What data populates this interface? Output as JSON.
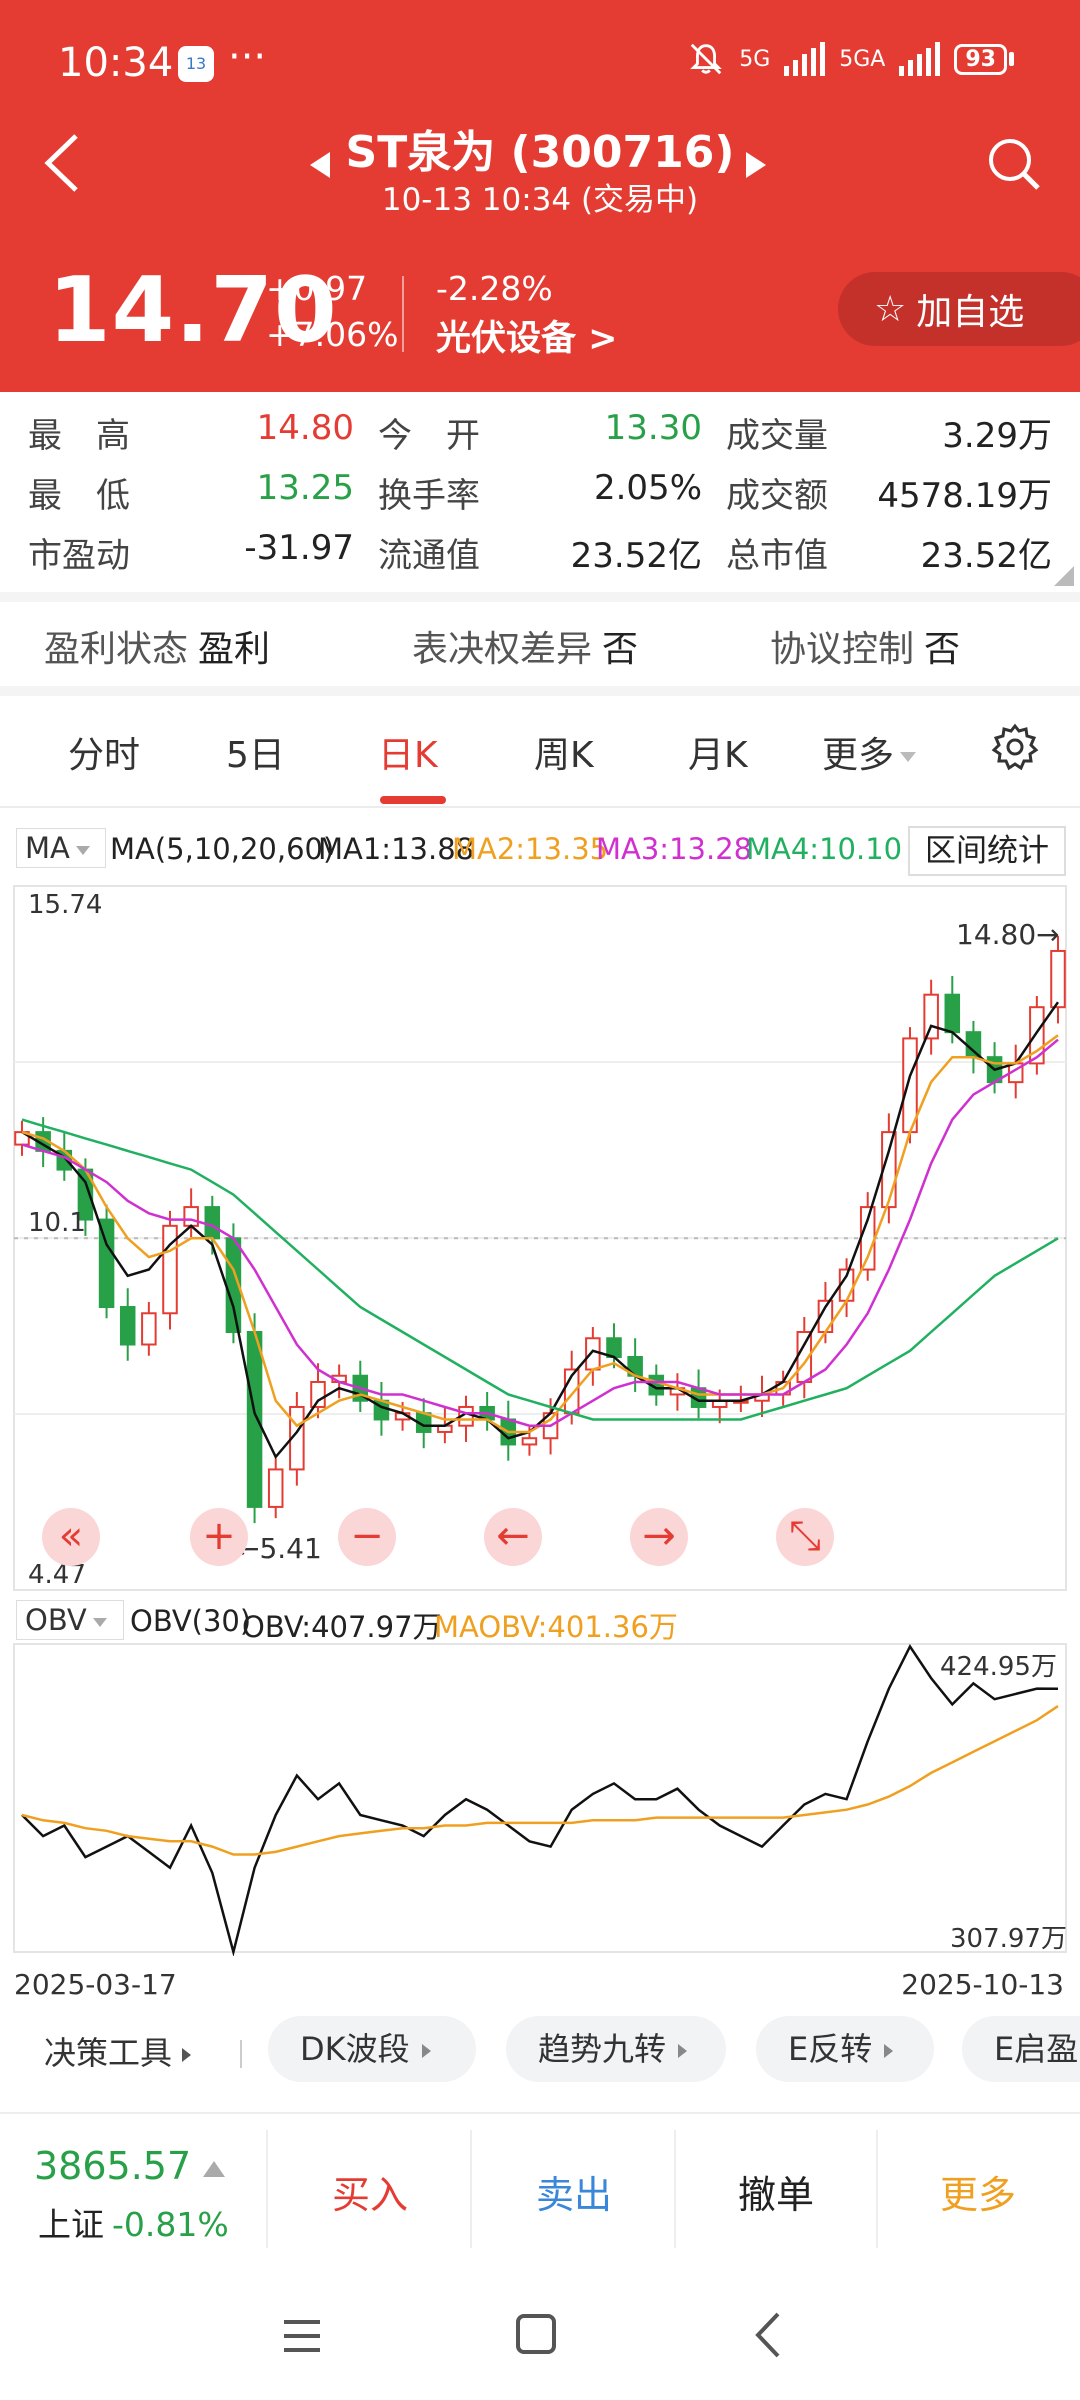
{
  "status_bar": {
    "time": "10:34",
    "notif": "13",
    "dots": "···",
    "net1": "5G",
    "net2": "5GA",
    "battery": "93"
  },
  "header": {
    "title": "ST泉为 (300716)",
    "subtitle": "10-13 10:34 (交易中)",
    "price": "14.70",
    "change": "+0.97",
    "change_pct": "+7.06%",
    "sector_pct": "-2.28%",
    "sector": "光伏设备  >",
    "watch_label": "加自选"
  },
  "quote": {
    "high_label": "最　高",
    "high": "14.80",
    "open_label": "今　开",
    "open": "13.30",
    "volume_label": "成交量",
    "volume": "3.29万",
    "low_label": "最　低",
    "low": "13.25",
    "turnover_label": "换手率",
    "turnover": "2.05%",
    "amount_label": "成交额",
    "amount": "4578.19万",
    "pe_label": "市盈动",
    "pe": "-31.97",
    "float_label": "流通值",
    "float_cap": "23.52亿",
    "total_label": "总市值",
    "total_cap": "23.52亿"
  },
  "flags": [
    {
      "label": "盈利状态",
      "value": "盈利"
    },
    {
      "label": "表决权差异",
      "value": "否"
    },
    {
      "label": "协议控制",
      "value": "否"
    }
  ],
  "tabs": [
    {
      "label": "分时"
    },
    {
      "label": "5日"
    },
    {
      "label": "日K"
    },
    {
      "label": "周K"
    },
    {
      "label": "月K"
    },
    {
      "label": "更多"
    }
  ],
  "ma_legend": {
    "selector": "MA",
    "params": "MA(5,10,20,60)",
    "ma1": "MA1:13.88",
    "ma2": "MA2:13.35",
    "ma3": "MA3:13.28",
    "ma4": "MA4:10.10",
    "range_btn": "区间统计",
    "colors": {
      "ma1": "#111111",
      "ma2": "#f0a020",
      "ma3": "#d030d0",
      "ma4": "#20b060"
    }
  },
  "kline": {
    "y_max": "15.74",
    "y_min": "4.47",
    "y_mid": "10.1",
    "max_marker": "14.80→",
    "min_marker": "←5.41",
    "controls": [
      "«",
      "+",
      "−",
      "←",
      "→",
      "⤡"
    ]
  },
  "obv": {
    "selector": "OBV",
    "params": "OBV(30)",
    "obv": "OBV:407.97万",
    "maobv": "MAOBV:401.36万",
    "y_max": "424.95万",
    "y_min": "307.97万"
  },
  "dates": {
    "start": "2025-03-17",
    "end": "2025-10-13"
  },
  "tools": {
    "first": "决策工具",
    "chips": [
      "DK波段",
      "趋势九转",
      "E反转",
      "E启盈"
    ]
  },
  "tradebar": {
    "index_value": "3865.57",
    "index_name": "上证",
    "index_pct": "-0.81%",
    "buy": "买入",
    "sell": "卖出",
    "cancel": "撤单",
    "more": "更多"
  },
  "chart_data": [
    {
      "type": "candlestick",
      "x_range": [
        "2025-03-17",
        "2025-10-13"
      ],
      "ylim": [
        4.47,
        15.74
      ],
      "annotations": [
        {
          "label": "14.80",
          "kind": "max",
          "value": 14.8
        },
        {
          "label": "5.41",
          "kind": "min",
          "value": 5.41
        }
      ],
      "ref_line": 10.1,
      "close_approx": [
        11.8,
        11.5,
        11.2,
        10.4,
        9.0,
        8.4,
        8.9,
        10.3,
        10.6,
        10.1,
        8.6,
        5.8,
        6.4,
        7.4,
        7.8,
        7.9,
        7.5,
        7.2,
        7.3,
        7.0,
        7.1,
        7.4,
        7.2,
        6.8,
        6.9,
        7.3,
        8.0,
        8.5,
        8.2,
        7.9,
        7.6,
        7.7,
        7.4,
        7.5,
        7.5,
        7.6,
        7.8,
        8.6,
        9.1,
        9.6,
        10.6,
        11.8,
        13.3,
        14.0,
        13.4,
        13.0,
        12.6,
        12.9,
        13.8,
        14.7
      ],
      "series": [
        {
          "name": "MA1",
          "values": [
            11.8,
            11.6,
            11.4,
            11.0,
            10.0,
            9.5,
            9.6,
            10.0,
            10.3,
            10.0,
            9.0,
            7.3,
            6.6,
            7.0,
            7.5,
            7.7,
            7.6,
            7.4,
            7.3,
            7.1,
            7.1,
            7.3,
            7.2,
            6.9,
            7.0,
            7.3,
            7.9,
            8.3,
            8.2,
            7.9,
            7.7,
            7.7,
            7.5,
            7.5,
            7.5,
            7.6,
            7.8,
            8.4,
            9.0,
            9.5,
            10.4,
            11.5,
            12.7,
            13.5,
            13.4,
            13.1,
            12.8,
            12.9,
            13.4,
            13.88
          ]
        },
        {
          "name": "MA2",
          "values": [
            11.8,
            11.7,
            11.5,
            11.2,
            10.6,
            10.1,
            9.8,
            9.9,
            10.1,
            10.1,
            9.6,
            8.6,
            7.5,
            7.1,
            7.3,
            7.5,
            7.6,
            7.5,
            7.4,
            7.3,
            7.2,
            7.2,
            7.2,
            7.0,
            7.0,
            7.2,
            7.6,
            8.0,
            8.1,
            7.9,
            7.8,
            7.7,
            7.6,
            7.6,
            7.6,
            7.6,
            7.7,
            8.1,
            8.6,
            9.1,
            9.8,
            10.7,
            11.8,
            12.6,
            13.0,
            13.0,
            12.9,
            12.9,
            13.1,
            13.35
          ]
        },
        {
          "name": "MA3",
          "values": [
            11.6,
            11.5,
            11.4,
            11.2,
            11.0,
            10.7,
            10.5,
            10.4,
            10.4,
            10.3,
            10.1,
            9.6,
            9.0,
            8.4,
            8.0,
            7.8,
            7.7,
            7.6,
            7.6,
            7.5,
            7.4,
            7.3,
            7.3,
            7.2,
            7.1,
            7.1,
            7.3,
            7.5,
            7.7,
            7.8,
            7.8,
            7.8,
            7.7,
            7.6,
            7.6,
            7.6,
            7.6,
            7.8,
            8.0,
            8.4,
            8.9,
            9.6,
            10.4,
            11.3,
            12.0,
            12.4,
            12.6,
            12.8,
            13.0,
            13.28
          ]
        },
        {
          "name": "MA4",
          "values": [
            12.0,
            11.9,
            11.8,
            11.7,
            11.6,
            11.5,
            11.4,
            11.3,
            11.2,
            11.0,
            10.8,
            10.5,
            10.2,
            9.9,
            9.6,
            9.3,
            9.0,
            8.8,
            8.6,
            8.4,
            8.2,
            8.0,
            7.8,
            7.6,
            7.5,
            7.4,
            7.3,
            7.2,
            7.2,
            7.2,
            7.2,
            7.2,
            7.2,
            7.2,
            7.2,
            7.3,
            7.4,
            7.5,
            7.6,
            7.7,
            7.9,
            8.1,
            8.3,
            8.6,
            8.9,
            9.2,
            9.5,
            9.7,
            9.9,
            10.1
          ]
        }
      ]
    },
    {
      "type": "line",
      "ylim": [
        307.97,
        424.95
      ],
      "series": [
        {
          "name": "OBV",
          "values": [
            360,
            352,
            356,
            344,
            348,
            352,
            346,
            340,
            356,
            338,
            305,
            340,
            360,
            375,
            366,
            372,
            360,
            358,
            356,
            352,
            360,
            366,
            362,
            356,
            350,
            348,
            362,
            368,
            372,
            366,
            366,
            370,
            362,
            356,
            352,
            348,
            356,
            364,
            368,
            366,
            388,
            408,
            424,
            412,
            402,
            410,
            404,
            406,
            408,
            407.97
          ]
        },
        {
          "name": "MAOBV",
          "values": [
            360,
            358,
            357,
            355,
            354,
            352,
            351,
            350,
            350,
            348,
            345,
            345,
            346,
            348,
            350,
            352,
            353,
            354,
            355,
            355,
            356,
            356,
            357,
            357,
            357,
            357,
            357,
            358,
            358,
            358,
            359,
            359,
            359,
            359,
            359,
            359,
            359,
            360,
            361,
            362,
            364,
            367,
            371,
            376,
            380,
            384,
            388,
            392,
            396,
            401.36
          ]
        }
      ]
    }
  ]
}
